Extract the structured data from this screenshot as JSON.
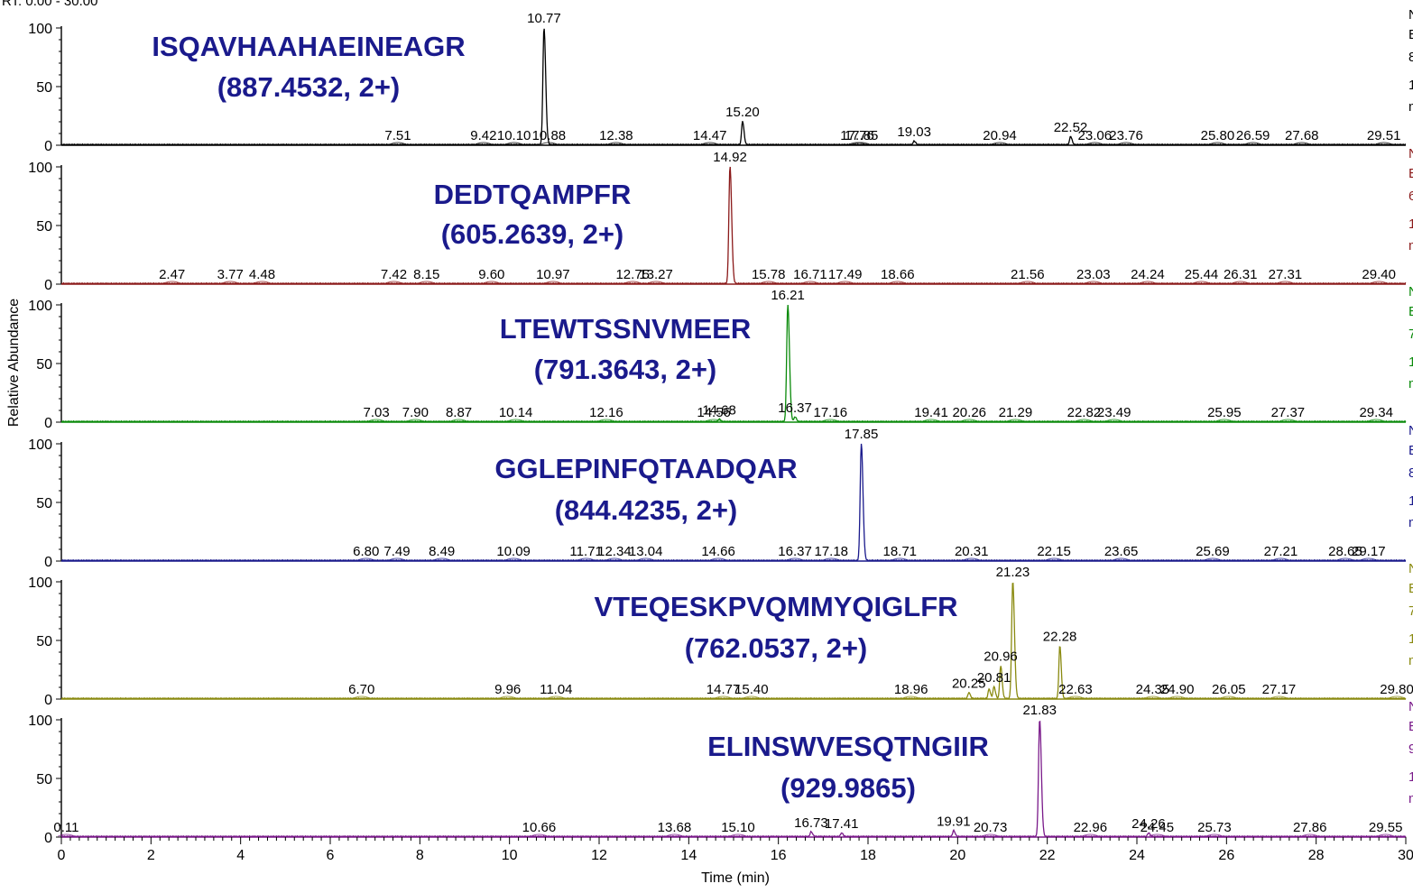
{
  "chart_data": {
    "type": "line",
    "header_text": "RT: 0.00 - 30.00",
    "xlabel": "Time (min)",
    "ylabel": "Relative Abundance",
    "xlim": [
      0,
      30
    ],
    "ylim": [
      0,
      100
    ],
    "x_ticks": [
      "0",
      "2",
      "4",
      "6",
      "8",
      "10",
      "12",
      "14",
      "16",
      "18",
      "20",
      "22",
      "24",
      "26",
      "28",
      "30"
    ],
    "y_ticks": [
      "0",
      "50",
      "100"
    ],
    "panels": [
      {
        "peptide": "ISQAVHAAHAEINEAGR",
        "mz": "(887.4532, 2+)",
        "color": "#000000",
        "side_fragments": [
          "N",
          "B",
          "8",
          "1",
          "m"
        ],
        "peaks": [
          {
            "rt": 10.77,
            "height": 100,
            "label": "10.77"
          },
          {
            "rt": 15.2,
            "height": 20,
            "label": "15.20"
          },
          {
            "rt": 22.52,
            "height": 7,
            "label": "22.52"
          },
          {
            "rt": 19.03,
            "height": 3,
            "label": "19.03"
          }
        ],
        "baseline_labels": [
          "7.51",
          "9.42",
          "10.10",
          "10.88",
          "12.38",
          "14.47",
          "17.76",
          "17.85",
          "20.94",
          "23.06",
          "23.76",
          "25.80",
          "26.59",
          "27.68",
          "29.51"
        ]
      },
      {
        "peptide": "DEDTQAMPFR",
        "mz": "(605.2639, 2+)",
        "color": "#8b1a1a",
        "side_fragments": [
          "N",
          "B",
          "6",
          "1",
          "m"
        ],
        "peaks": [
          {
            "rt": 14.92,
            "height": 100,
            "label": "14.92"
          }
        ],
        "baseline_labels": [
          "2.47",
          "3.77",
          "4.48",
          "7.42",
          "8.15",
          "9.60",
          "10.97",
          "12.75",
          "13.27",
          "15.78",
          "16.71",
          "17.49",
          "18.66",
          "21.56",
          "23.03",
          "24.24",
          "25.44",
          "26.31",
          "27.31",
          "29.40"
        ]
      },
      {
        "peptide": "LTEWTSSNVMEER",
        "mz": "(791.3643, 2+)",
        "color": "#0a8a0a",
        "side_fragments": [
          "N",
          "B",
          "7",
          "1",
          "m"
        ],
        "peaks": [
          {
            "rt": 16.21,
            "height": 100,
            "label": "16.21"
          },
          {
            "rt": 14.68,
            "height": 2,
            "label": "14.68"
          },
          {
            "rt": 16.37,
            "height": 4,
            "label": "16.37"
          }
        ],
        "baseline_labels": [
          "7.03",
          "7.90",
          "8.87",
          "10.14",
          "12.16",
          "14.56",
          "17.16",
          "19.41",
          "20.26",
          "21.29",
          "22.82",
          "23.49",
          "25.95",
          "27.37",
          "29.34"
        ]
      },
      {
        "peptide": "GGLEPINFQTAADQAR",
        "mz": "(844.4235, 2+)",
        "color": "#1a1a8c",
        "side_fragments": [
          "N",
          "B",
          "8",
          "1",
          "m"
        ],
        "peaks": [
          {
            "rt": 17.85,
            "height": 100,
            "label": "17.85"
          }
        ],
        "baseline_labels": [
          "6.80",
          "7.49",
          "8.49",
          "10.09",
          "11.71",
          "12.34",
          "13.04",
          "14.66",
          "16.37",
          "17.18",
          "18.71",
          "20.31",
          "22.15",
          "23.65",
          "25.69",
          "27.21",
          "28.65",
          "29.17"
        ]
      },
      {
        "peptide": "VTEQESKPVQMMYQIGLFR",
        "mz": "(762.0537, 2+)",
        "color": "#8a8a10",
        "side_fragments": [
          "N",
          "B",
          "7",
          "1",
          "m"
        ],
        "peaks": [
          {
            "rt": 21.23,
            "height": 100,
            "label": "21.23"
          },
          {
            "rt": 22.28,
            "height": 45,
            "label": "22.28"
          },
          {
            "rt": 20.96,
            "height": 28,
            "label": "20.96"
          },
          {
            "rt": 20.81,
            "height": 10,
            "label": "20.81"
          },
          {
            "rt": 20.25,
            "height": 5,
            "label": "20.25"
          },
          {
            "rt": 20.7,
            "height": 8,
            "label": ""
          }
        ],
        "baseline_labels": [
          "6.70",
          "9.96",
          "11.04",
          "14.77",
          "15.40",
          "18.96",
          "22.63",
          "24.35",
          "24.90",
          "26.05",
          "27.17",
          "29.80"
        ]
      },
      {
        "peptide": "ELINSWVESQTNGIIR",
        "mz": "(929.9865)",
        "color": "#7a1a8a",
        "side_fragments": [
          "N",
          "B",
          "9",
          "1",
          "m"
        ],
        "peaks": [
          {
            "rt": 21.83,
            "height": 100,
            "label": "21.83"
          },
          {
            "rt": 19.91,
            "height": 5,
            "label": "19.91"
          },
          {
            "rt": 16.73,
            "height": 4,
            "label": "16.73"
          },
          {
            "rt": 17.41,
            "height": 3,
            "label": "17.41"
          },
          {
            "rt": 24.26,
            "height": 3,
            "label": "24.26"
          }
        ],
        "baseline_labels": [
          "0.11",
          "10.66",
          "13.68",
          "15.10",
          "20.73",
          "22.96",
          "24.45",
          "25.73",
          "27.86",
          "29.55"
        ]
      }
    ]
  }
}
